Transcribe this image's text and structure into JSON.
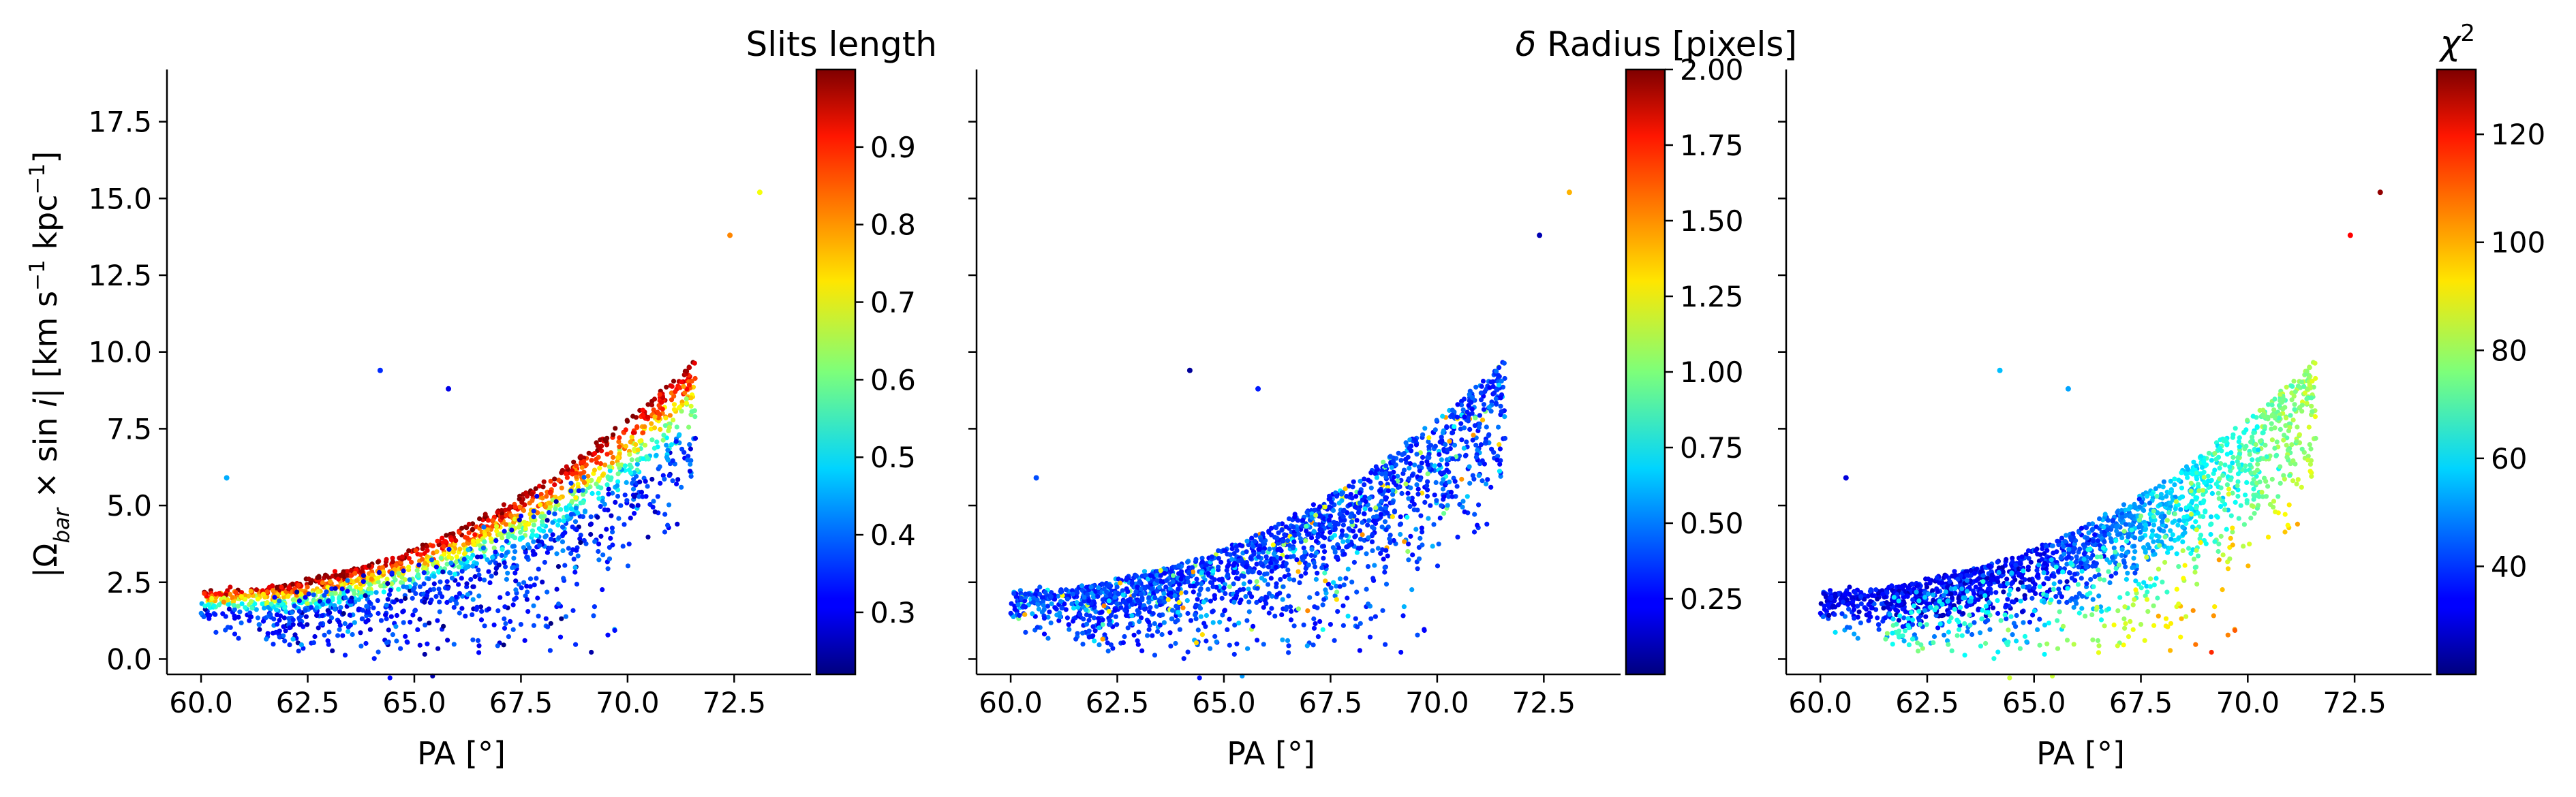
{
  "chart_data": [
    {
      "type": "scatter",
      "panel": "left",
      "xlabel": "PA [°]",
      "ylabel": "|Ω_bar × sin i|   [km s⁻¹ kpc⁻¹]",
      "xlim": [
        59.2,
        74.3
      ],
      "ylim": [
        -0.5,
        19.2
      ],
      "x_ticks": [
        "60.0",
        "62.5",
        "65.0",
        "67.5",
        "70.0",
        "72.5"
      ],
      "y_ticks": [
        "0.0",
        "2.5",
        "5.0",
        "7.5",
        "10.0",
        "12.5",
        "15.0",
        "17.5"
      ],
      "colorbar": {
        "label": "Slits length",
        "range": [
          0.22,
          1.0
        ],
        "ticks": [
          "0.3",
          "0.4",
          "0.5",
          "0.6",
          "0.7",
          "0.8",
          "0.9"
        ],
        "colormap": "jet"
      },
      "grid": false,
      "color_trend": "upper edge of the point cloud is high (red), lower scattered points are low (cyan/blue)",
      "outliers": [
        {
          "x": 64.2,
          "y": 9.4,
          "c": 0.35
        },
        {
          "x": 65.8,
          "y": 8.8,
          "c": 0.3
        },
        {
          "x": 60.6,
          "y": 5.9,
          "c": 0.45
        },
        {
          "x": 72.4,
          "y": 13.8,
          "c": 0.8
        },
        {
          "x": 73.1,
          "y": 15.2,
          "c": 0.7
        }
      ]
    },
    {
      "type": "scatter",
      "panel": "middle",
      "xlabel": "PA [°]",
      "xlim": [
        59.2,
        74.3
      ],
      "ylim": [
        -0.5,
        19.2
      ],
      "x_ticks": [
        "60.0",
        "62.5",
        "65.0",
        "67.5",
        "70.0",
        "72.5"
      ],
      "colorbar": {
        "label": "δ Radius [pixels]",
        "range": [
          0.0,
          2.0
        ],
        "ticks": [
          "0.25",
          "0.50",
          "0.75",
          "1.00",
          "1.25",
          "1.50",
          "1.75",
          "2.00"
        ],
        "colormap": "jet"
      },
      "grid": false,
      "color_trend": "mostly low values (blue), a few scattered points up to ~1.5",
      "outliers": [
        {
          "x": 64.2,
          "y": 9.4,
          "c": 0.05
        },
        {
          "x": 65.8,
          "y": 8.8,
          "c": 0.3
        },
        {
          "x": 60.6,
          "y": 5.9,
          "c": 0.4
        },
        {
          "x": 72.4,
          "y": 13.8,
          "c": 0.1
        },
        {
          "x": 73.1,
          "y": 15.2,
          "c": 1.4
        }
      ]
    },
    {
      "type": "scatter",
      "panel": "right",
      "xlabel": "PA [°]",
      "xlim": [
        59.2,
        74.3
      ],
      "ylim": [
        -0.5,
        19.2
      ],
      "x_ticks": [
        "60.0",
        "62.5",
        "65.0",
        "67.5",
        "70.0",
        "72.5"
      ],
      "colorbar": {
        "label": "χ²",
        "range": [
          20,
          132
        ],
        "ticks": [
          "40",
          "60",
          "80",
          "100",
          "120"
        ],
        "colormap": "jet"
      },
      "grid": false,
      "color_trend": "blue (~30) in the dense lower-left region, rising to green/yellow (~80-100) toward upper right",
      "outliers": [
        {
          "x": 64.2,
          "y": 9.4,
          "c": 55
        },
        {
          "x": 65.8,
          "y": 8.8,
          "c": 52
        },
        {
          "x": 60.6,
          "y": 5.9,
          "c": 30
        },
        {
          "x": 72.4,
          "y": 13.8,
          "c": 118
        },
        {
          "x": 73.1,
          "y": 15.2,
          "c": 130
        }
      ]
    }
  ],
  "ylabel_parts": {
    "open": "|Ω",
    "sub": "bar",
    "mid": " × sin ",
    "i": "i",
    "bar": "|",
    "units_open": "   [km s",
    "exp1": "−1",
    "units_mid": " kpc",
    "exp2": "−1",
    "units_close": "]"
  },
  "chi_label": {
    "base": "χ",
    "sup": "2"
  },
  "delta_label": {
    "symbol": "δ",
    "rest": " Radius [pixels]"
  }
}
